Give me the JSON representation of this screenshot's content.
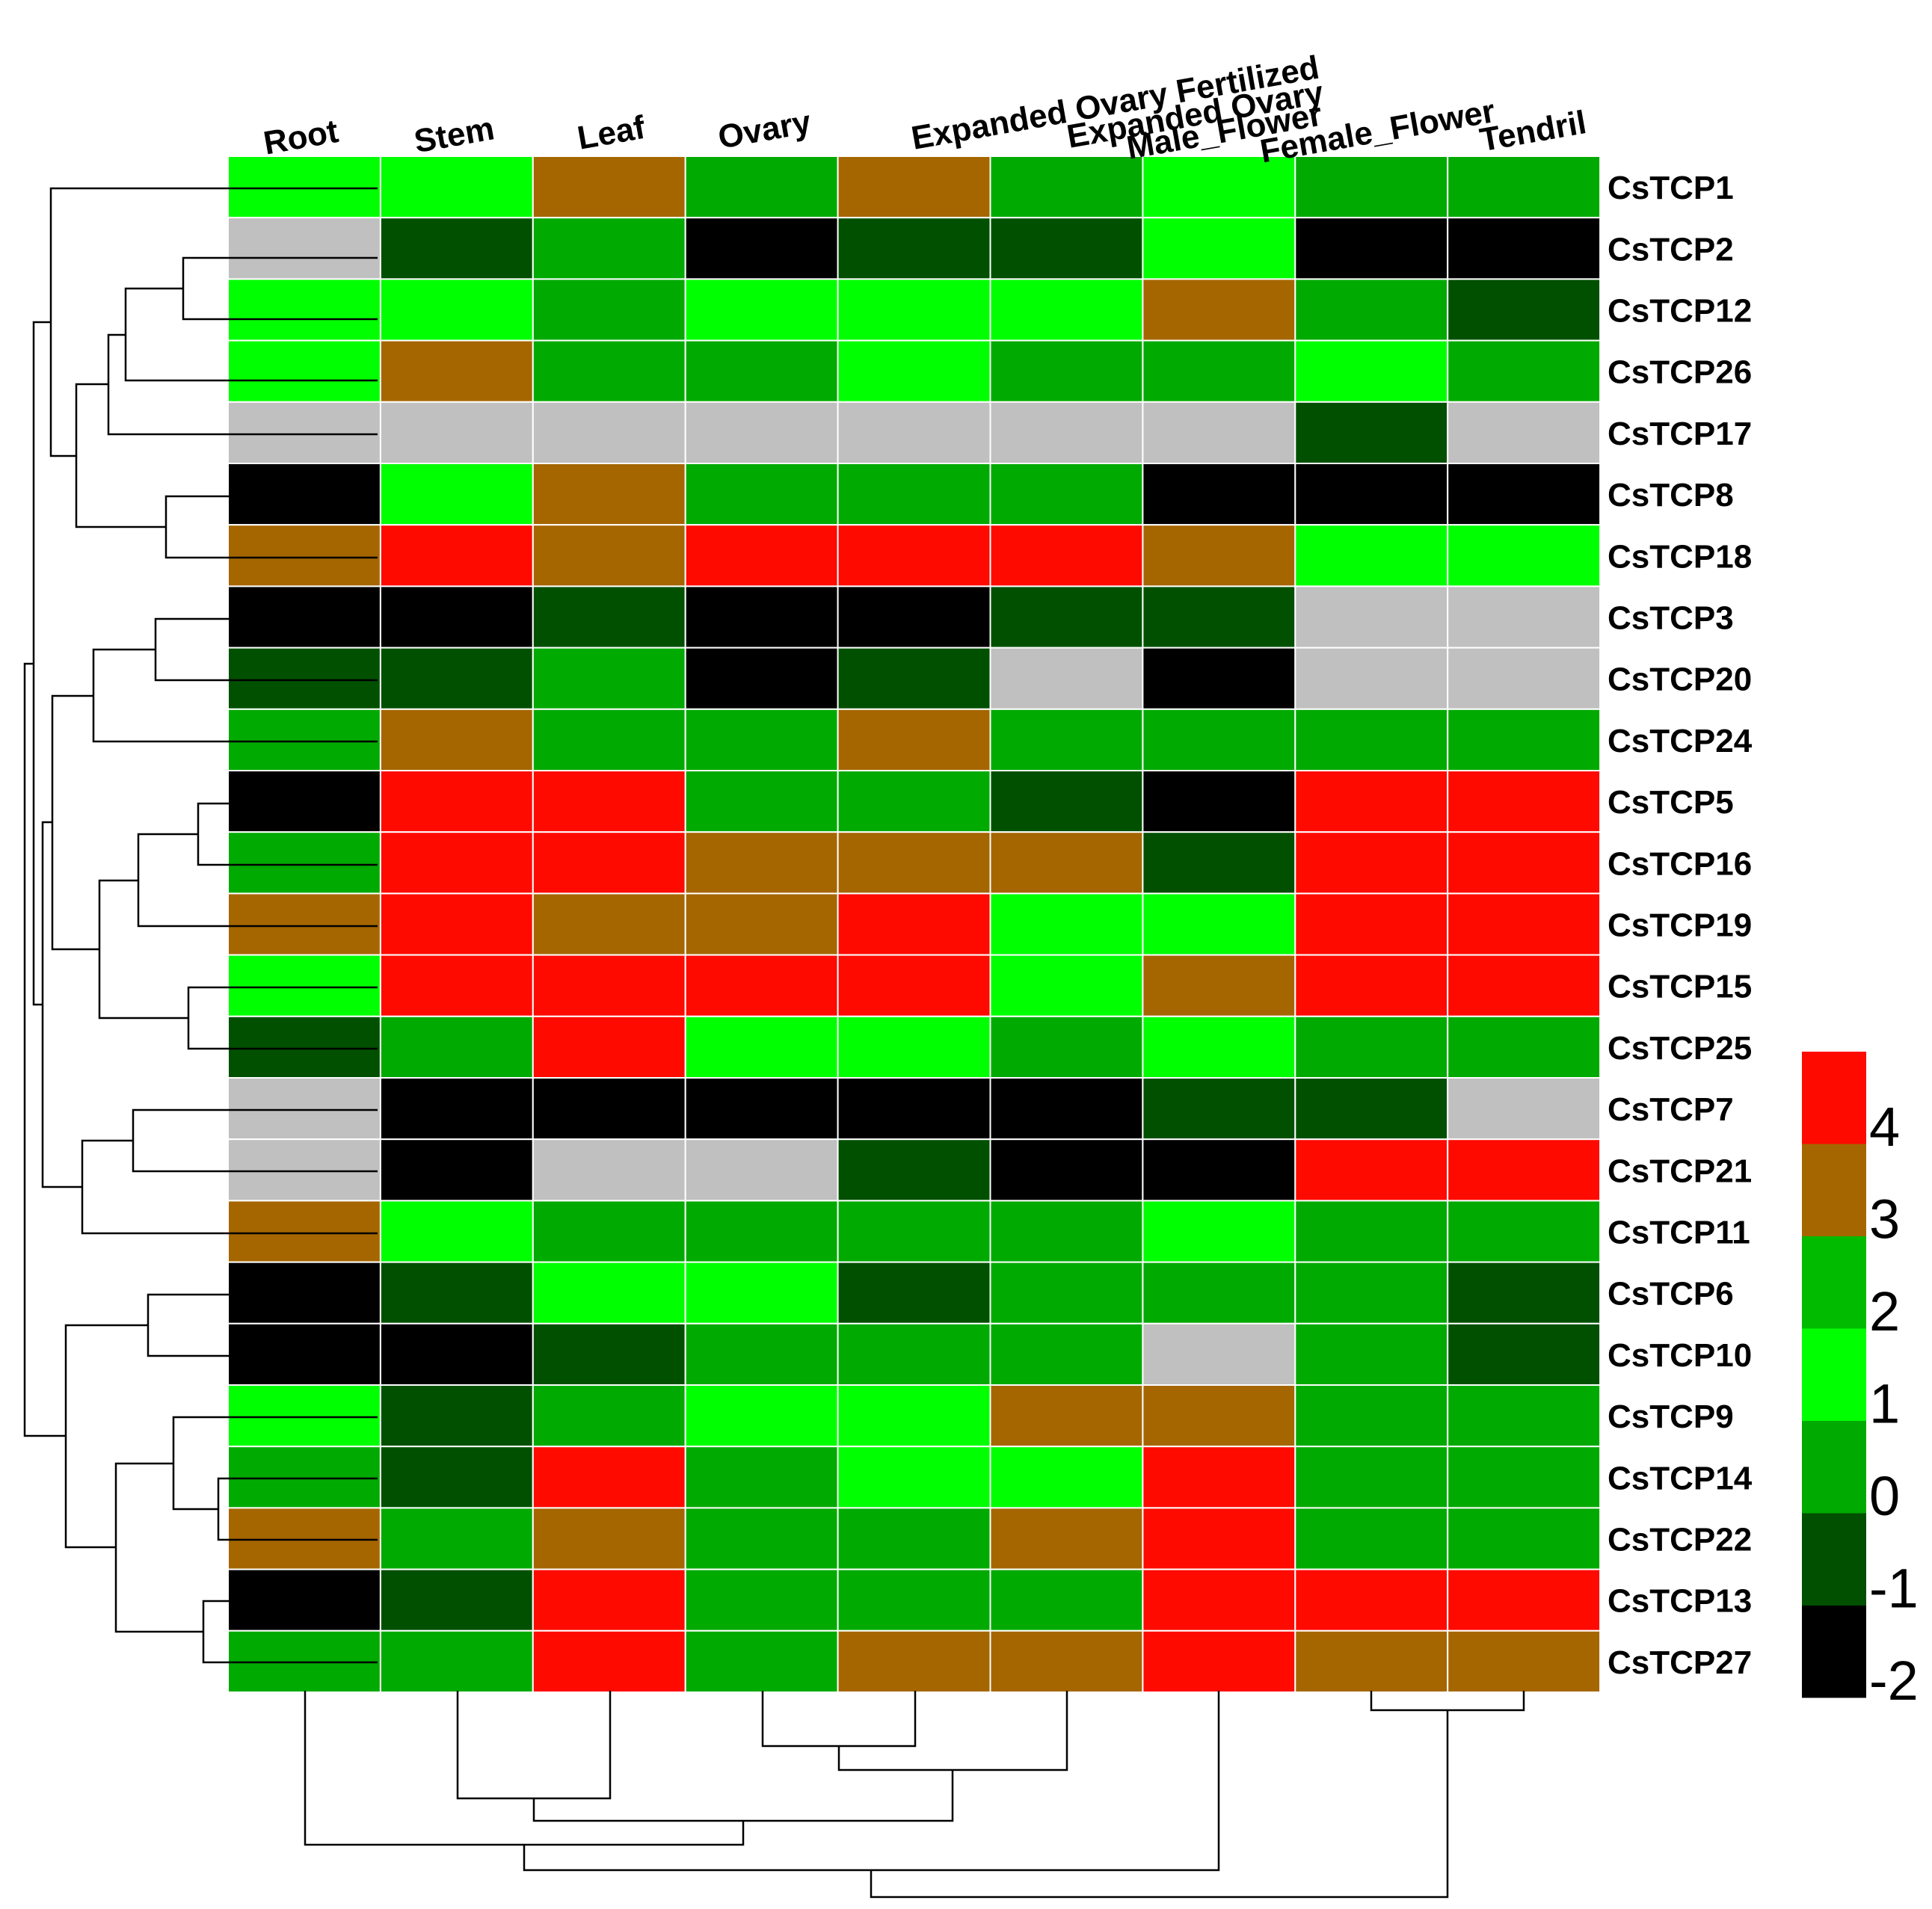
{
  "chart_data": {
    "type": "heatmap",
    "columns": [
      "Root",
      "Stem",
      "Leaf",
      "Ovary",
      "Expanded Ovary Fertilized",
      "Expanded Ovary",
      "Male_Flower",
      "Female_Flower",
      "Tendril"
    ],
    "rows": [
      "CsTCP1",
      "CsTCP2",
      "CsTCP12",
      "CsTCP26",
      "CsTCP17",
      "CsTCP8",
      "CsTCP18",
      "CsTCP3",
      "CsTCP20",
      "CsTCP24",
      "CsTCP5",
      "CsTCP16",
      "CsTCP19",
      "CsTCP15",
      "CsTCP25",
      "CsTCP7",
      "CsTCP21",
      "CsTCP11",
      "CsTCP6",
      "CsTCP10",
      "CsTCP9",
      "CsTCP14",
      "CsTCP22",
      "CsTCP13",
      "CsTCP27"
    ],
    "value_bins": [
      {
        "level": -2,
        "color": "#000000"
      },
      {
        "level": -1,
        "color": "#005000"
      },
      {
        "level": 0,
        "color": "#00aa00"
      },
      {
        "level": 1,
        "color": "#00ff00"
      },
      {
        "level": 2,
        "color": "#00bb00"
      },
      {
        "level": 3,
        "color": "#a56600"
      },
      {
        "level": 4,
        "color": "#ff0a00"
      }
    ],
    "missing_color": "#c0c0c0",
    "values": [
      [
        1,
        1,
        3,
        0,
        3,
        0,
        1,
        0,
        0
      ],
      [
        null,
        -1,
        0,
        -2,
        -1,
        -1,
        1,
        -2,
        -2
      ],
      [
        1,
        1,
        0,
        1,
        1,
        1,
        3,
        0,
        -1
      ],
      [
        1,
        3,
        0,
        0,
        1,
        0,
        0,
        1,
        0
      ],
      [
        null,
        null,
        null,
        null,
        null,
        null,
        null,
        -1,
        null
      ],
      [
        -2,
        1,
        3,
        0,
        0,
        0,
        -2,
        -2,
        -2
      ],
      [
        3,
        4,
        3,
        4,
        4,
        4,
        3,
        1,
        1
      ],
      [
        -2,
        -2,
        -1,
        -2,
        -2,
        -1,
        -1,
        null,
        null
      ],
      [
        -1,
        -1,
        0,
        -2,
        -1,
        null,
        -2,
        null,
        null
      ],
      [
        0,
        3,
        0,
        0,
        3,
        0,
        0,
        0,
        0
      ],
      [
        -2,
        4,
        4,
        0,
        0,
        -1,
        -2,
        4,
        4
      ],
      [
        0,
        4,
        4,
        3,
        3,
        3,
        -1,
        4,
        4
      ],
      [
        3,
        4,
        3,
        3,
        4,
        1,
        1,
        4,
        4
      ],
      [
        1,
        4,
        4,
        4,
        4,
        1,
        3,
        4,
        4
      ],
      [
        -1,
        0,
        4,
        1,
        1,
        0,
        1,
        0,
        0
      ],
      [
        null,
        -2,
        -2,
        -2,
        -2,
        -2,
        -1,
        -1,
        null
      ],
      [
        null,
        -2,
        null,
        null,
        -1,
        -2,
        -2,
        4,
        4
      ],
      [
        3,
        1,
        0,
        0,
        0,
        0,
        1,
        0,
        0
      ],
      [
        -2,
        -1,
        1,
        1,
        -1,
        0,
        0,
        0,
        -1
      ],
      [
        -2,
        -2,
        -1,
        0,
        0,
        0,
        null,
        0,
        -1
      ],
      [
        1,
        -1,
        0,
        1,
        1,
        3,
        3,
        0,
        0
      ],
      [
        0,
        -1,
        4,
        0,
        1,
        1,
        4,
        0,
        0
      ],
      [
        3,
        0,
        3,
        0,
        0,
        3,
        4,
        0,
        0
      ],
      [
        -2,
        -1,
        4,
        0,
        0,
        0,
        4,
        4,
        4
      ],
      [
        0,
        0,
        4,
        0,
        3,
        3,
        4,
        3,
        3
      ]
    ],
    "legend": {
      "position": "bottom-right",
      "ticks": [
        "4",
        "3",
        "2",
        "1",
        "0",
        "-1",
        "-2"
      ],
      "colors_top_to_bottom": [
        "#ff0a00",
        "#a56600",
        "#00bb00",
        "#00ff00",
        "#00aa00",
        "#005000",
        "#000000"
      ]
    },
    "row_dendrogram": true,
    "column_dendrogram": true
  }
}
